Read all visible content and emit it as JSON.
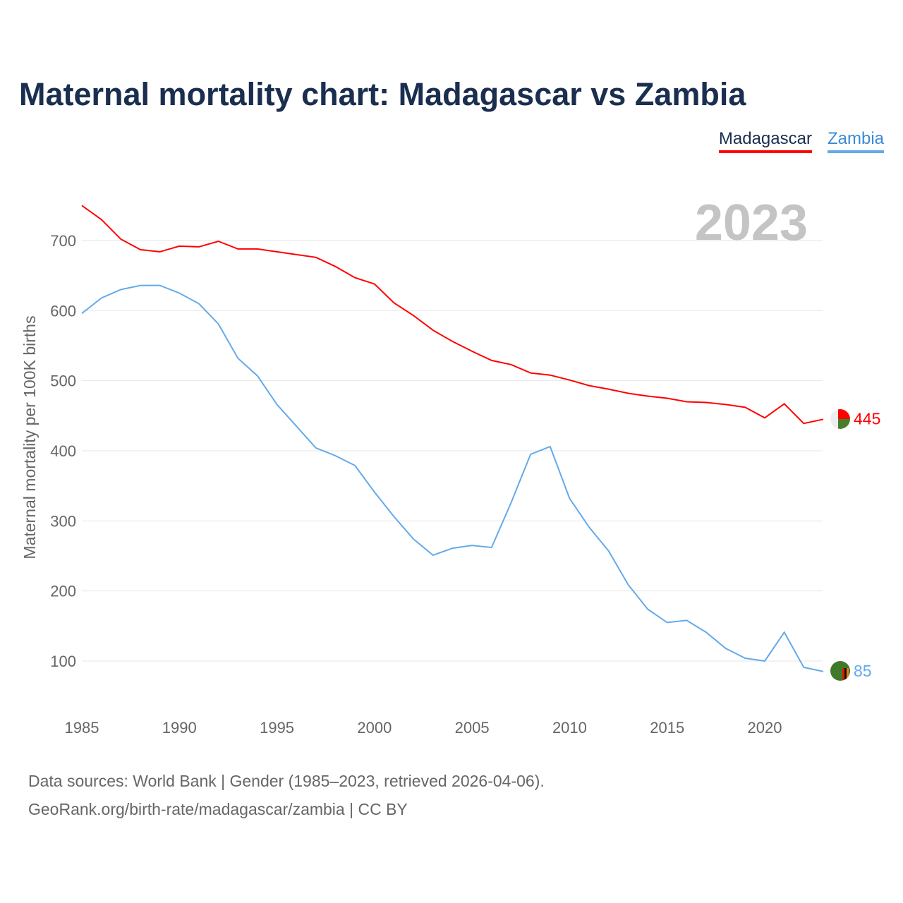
{
  "title": "Maternal mortality chart: Madagascar vs Zambia",
  "year_label": "2023",
  "footer": {
    "line1": "Data sources: World Bank | Gender (1985–2023, retrieved 2026-04-06).",
    "line2": "GeoRank.org/birth-rate/madagascar/zambia | CC BY"
  },
  "chart_data": {
    "type": "line",
    "title": "Maternal mortality chart: Madagascar vs Zambia",
    "xlabel": "",
    "ylabel": "Maternal mortality per 100K births",
    "xlim": [
      1985,
      2023
    ],
    "ylim": [
      40,
      760
    ],
    "xticks": [
      1985,
      1990,
      1995,
      2000,
      2005,
      2010,
      2015,
      2020
    ],
    "yticks": [
      100,
      200,
      300,
      400,
      500,
      600,
      700
    ],
    "grid": true,
    "legend_position": "top-right",
    "x": [
      1985,
      1986,
      1987,
      1988,
      1989,
      1990,
      1991,
      1992,
      1993,
      1994,
      1995,
      1996,
      1997,
      1998,
      1999,
      2000,
      2001,
      2002,
      2003,
      2004,
      2005,
      2006,
      2007,
      2008,
      2009,
      2010,
      2011,
      2012,
      2013,
      2014,
      2015,
      2016,
      2017,
      2018,
      2019,
      2020,
      2021,
      2022,
      2023
    ],
    "series": [
      {
        "name": "Madagascar",
        "color": "#ff0000",
        "end_label": "445",
        "values": [
          750,
          730,
          702,
          687,
          684,
          692,
          691,
          699,
          688,
          688,
          684,
          680,
          676,
          663,
          647,
          638,
          611,
          593,
          572,
          556,
          542,
          529,
          523,
          511,
          508,
          501,
          493,
          488,
          482,
          478,
          475,
          470,
          469,
          466,
          462,
          447,
          467,
          439,
          445
        ]
      },
      {
        "name": "Zambia",
        "color": "#63aaea",
        "end_label": "85",
        "values": [
          596,
          618,
          630,
          636,
          636,
          625,
          610,
          581,
          532,
          507,
          466,
          435,
          404,
          393,
          379,
          341,
          306,
          274,
          251,
          261,
          265,
          262,
          326,
          395,
          406,
          332,
          291,
          257,
          209,
          174,
          155,
          158,
          141,
          118,
          104,
          100,
          141,
          91,
          85
        ]
      }
    ]
  }
}
